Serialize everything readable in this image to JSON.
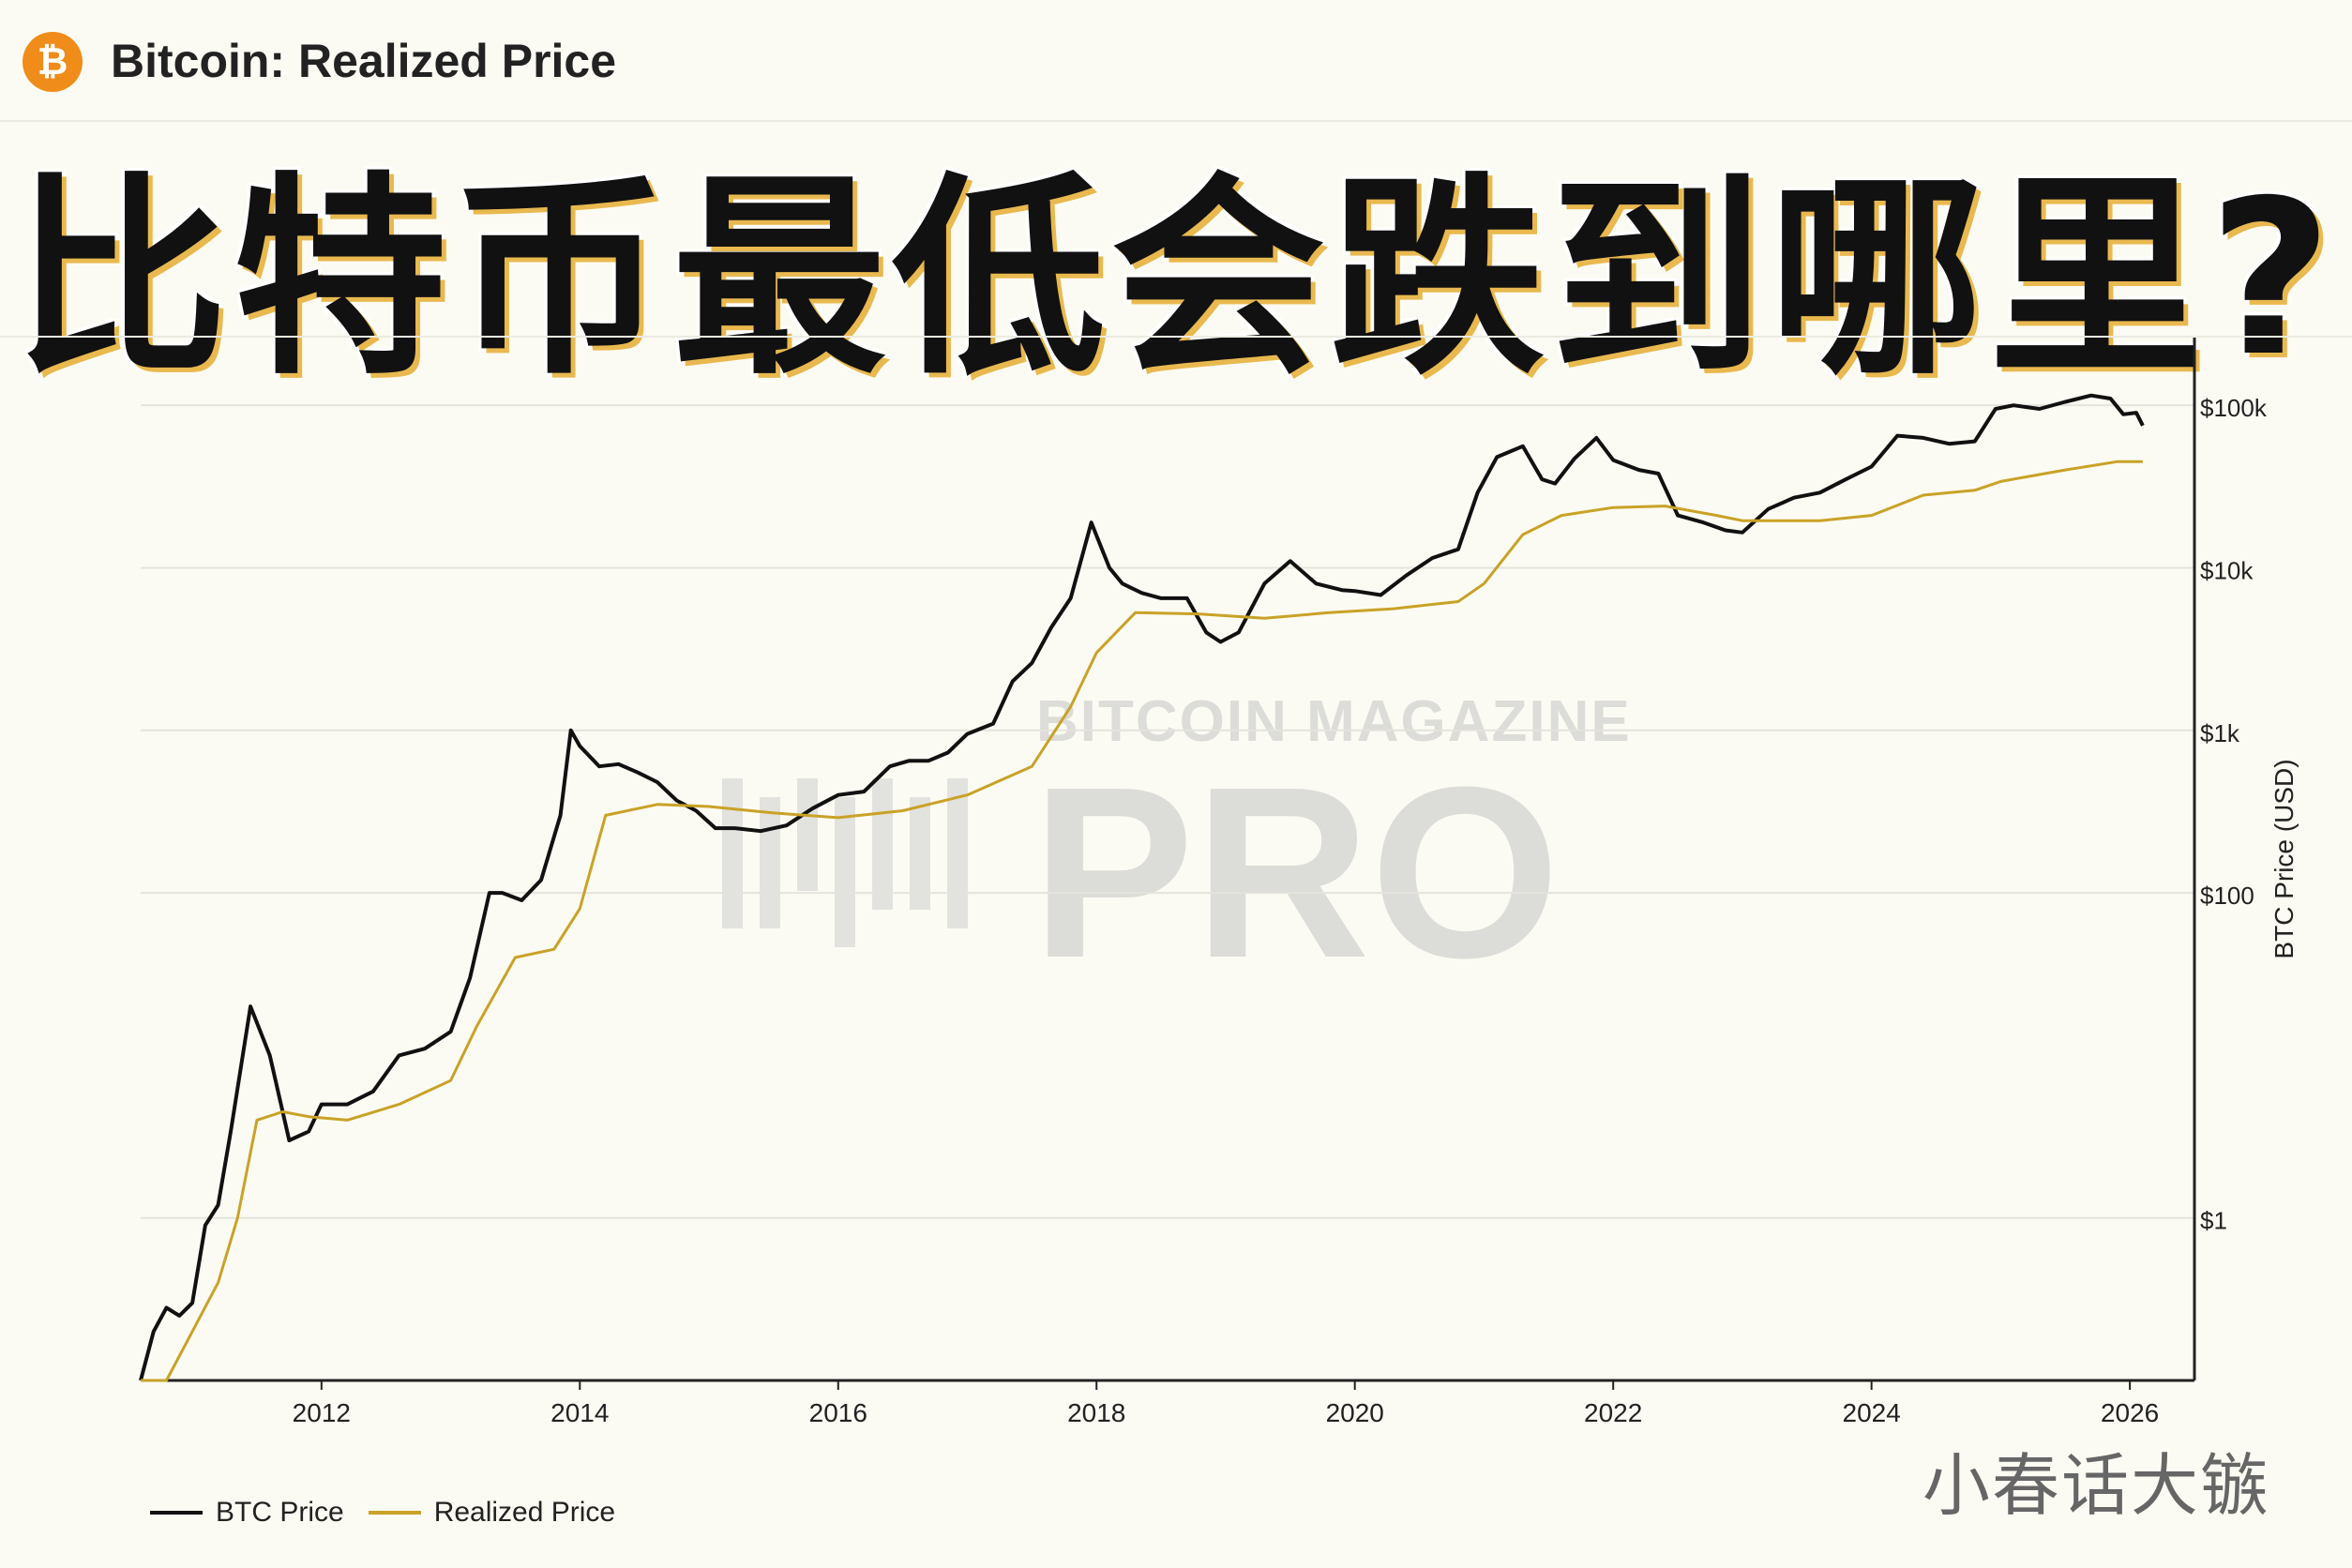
{
  "header": {
    "logo_icon": "bitcoin-logo-icon",
    "logo_glyph": "₿",
    "title": "Bitcoin: Realized Price"
  },
  "headline": "比特币最低会跌到哪里?",
  "watermark": {
    "brand_top": "BITCOIN MAGAZINE",
    "brand_bottom": "PRO",
    "corner_text": "小春话大镞"
  },
  "colors": {
    "btc_price": "#111111",
    "realized_price": "#c9a227",
    "background": "#fcfbf3",
    "grid": "#e4e3dc",
    "bitcoin_orange": "#f08c1a"
  },
  "chart_data": {
    "type": "line",
    "title": "Bitcoin: Realized Price",
    "xlabel": "",
    "ylabel": "BTC Price (USD)",
    "y_scale": "log",
    "ylim": [
      0.1,
      200000
    ],
    "xlim": [
      2010.6,
      2026.5
    ],
    "x_ticks": [
      2012,
      2014,
      2016,
      2018,
      2020,
      2022,
      2024,
      2026
    ],
    "x_tick_labels": [
      "2012",
      "2014",
      "2016",
      "2018",
      "2020",
      "2022",
      "2024",
      "2026"
    ],
    "y_ticks": [
      1,
      100,
      1000,
      10000,
      100000
    ],
    "y_tick_labels": [
      "$1",
      "$100",
      "$1k",
      "$10k",
      "$100k"
    ],
    "grid": true,
    "legend_position": "bottom-left",
    "series": [
      {
        "name": "BTC Price",
        "x": [
          2010.6,
          2010.7,
          2010.8,
          2010.9,
          2011.0,
          2011.1,
          2011.2,
          2011.3,
          2011.45,
          2011.6,
          2011.75,
          2011.9,
          2012.0,
          2012.2,
          2012.4,
          2012.6,
          2012.8,
          2013.0,
          2013.15,
          2013.3,
          2013.4,
          2013.55,
          2013.7,
          2013.85,
          2013.93,
          2014.0,
          2014.15,
          2014.3,
          2014.45,
          2014.6,
          2014.75,
          2014.9,
          2015.05,
          2015.2,
          2015.4,
          2015.6,
          2015.8,
          2016.0,
          2016.2,
          2016.4,
          2016.55,
          2016.7,
          2016.85,
          2017.0,
          2017.2,
          2017.35,
          2017.5,
          2017.65,
          2017.8,
          2017.96,
          2018.1,
          2018.2,
          2018.35,
          2018.5,
          2018.7,
          2018.85,
          2018.96,
          2019.1,
          2019.3,
          2019.5,
          2019.7,
          2019.9,
          2020.0,
          2020.2,
          2020.4,
          2020.6,
          2020.8,
          2020.95,
          2021.1,
          2021.3,
          2021.45,
          2021.55,
          2021.7,
          2021.87,
          2022.0,
          2022.2,
          2022.35,
          2022.5,
          2022.7,
          2022.87,
          2023.0,
          2023.2,
          2023.4,
          2023.6,
          2023.8,
          2024.0,
          2024.2,
          2024.4,
          2024.6,
          2024.8,
          2024.96,
          2025.1,
          2025.3,
          2025.5,
          2025.7,
          2025.85,
          2025.95,
          2026.05,
          2026.1
        ],
        "values": [
          0.06,
          0.2,
          0.28,
          0.25,
          0.3,
          0.9,
          1.2,
          3.5,
          20,
          10,
          3,
          3.4,
          5,
          5,
          6,
          10,
          11,
          14,
          30,
          100,
          100,
          90,
          120,
          300,
          1000,
          800,
          600,
          620,
          550,
          480,
          370,
          320,
          250,
          250,
          240,
          260,
          330,
          400,
          420,
          600,
          650,
          650,
          730,
          950,
          1100,
          2000,
          2600,
          4300,
          6500,
          19000,
          10000,
          8000,
          7000,
          6500,
          6500,
          4000,
          3500,
          4000,
          8000,
          11000,
          8000,
          7300,
          7200,
          6800,
          9000,
          11500,
          13000,
          29000,
          48000,
          56000,
          35000,
          33000,
          47000,
          63000,
          46000,
          40000,
          38000,
          21000,
          19000,
          17000,
          16500,
          23000,
          27000,
          29000,
          35000,
          42000,
          65000,
          63000,
          58000,
          60000,
          95000,
          100000,
          95000,
          105000,
          115000,
          110000,
          88000,
          90000,
          75000
        ]
      },
      {
        "name": "Realized Price",
        "x": [
          2010.6,
          2010.8,
          2011.0,
          2011.2,
          2011.35,
          2011.5,
          2011.7,
          2011.9,
          2012.2,
          2012.6,
          2013.0,
          2013.2,
          2013.5,
          2013.8,
          2014.0,
          2014.2,
          2014.6,
          2015.0,
          2015.5,
          2016.0,
          2016.5,
          2017.0,
          2017.5,
          2017.8,
          2018.0,
          2018.3,
          2018.8,
          2019.3,
          2019.8,
          2020.3,
          2020.8,
          2021.0,
          2021.3,
          2021.6,
          2022.0,
          2022.4,
          2022.8,
          2023.0,
          2023.6,
          2024.0,
          2024.4,
          2024.8,
          2025.0,
          2025.5,
          2025.9,
          2026.1
        ],
        "values": [
          0.05,
          0.1,
          0.2,
          0.4,
          1,
          4,
          4.5,
          4.2,
          4,
          5,
          7,
          15,
          40,
          45,
          80,
          300,
          350,
          340,
          310,
          290,
          320,
          400,
          600,
          1400,
          3000,
          5300,
          5200,
          4900,
          5300,
          5600,
          6200,
          8000,
          16000,
          21000,
          23500,
          24000,
          21000,
          19500,
          19500,
          21000,
          28000,
          30000,
          34000,
          40000,
          45000,
          45000
        ]
      }
    ]
  }
}
